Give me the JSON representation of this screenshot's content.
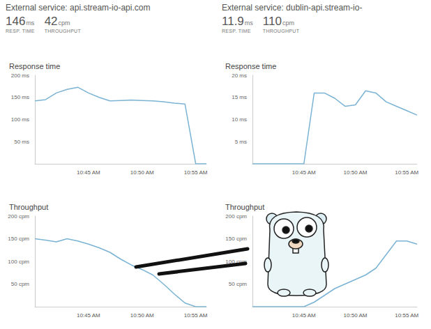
{
  "panels": [
    {
      "title": "External service: api.stream-io-api.com",
      "stats": [
        {
          "value": 146,
          "unit": "ms",
          "label": "RESP. TIME"
        },
        {
          "value": 42,
          "unit": "cpm",
          "label": "THROUGHPUT"
        }
      ]
    },
    {
      "title": "External service: dublin-api.stream-io-",
      "stats": [
        {
          "value": 11.9,
          "unit": "ms",
          "label": "RESP. TIME"
        },
        {
          "value": 110,
          "unit": "cpm",
          "label": "THROUGHPUT"
        }
      ]
    }
  ],
  "chart_data": [
    {
      "type": "line",
      "title": "Response time",
      "categories": [
        null,
        null,
        null,
        null,
        null,
        "10:45 AM",
        null,
        null,
        null,
        null,
        "10:50 AM",
        null,
        null,
        null,
        null,
        "10:55 AM",
        null
      ],
      "values": [
        142,
        145,
        160,
        168,
        173,
        160,
        150,
        142,
        143,
        144,
        143,
        142,
        140,
        137,
        135,
        0,
        0
      ],
      "color": "#7ab3d4",
      "ylim": [
        0,
        200
      ],
      "yticks": [
        {
          "value": 50,
          "label": "50 ms"
        },
        {
          "value": 100,
          "label": "100 ms"
        },
        {
          "value": 150,
          "label": "150 ms"
        },
        {
          "value": 200,
          "label": "200 ms"
        }
      ],
      "grid": false
    },
    {
      "type": "line",
      "title": "Throughput",
      "categories": [
        null,
        null,
        null,
        null,
        null,
        "10:45 AM",
        null,
        null,
        null,
        null,
        "10:50 AM",
        null,
        null,
        null,
        null,
        "10:55 AM",
        null
      ],
      "values": [
        150,
        147,
        143,
        150,
        145,
        138,
        130,
        120,
        105,
        92,
        82,
        70,
        50,
        28,
        8,
        0,
        0
      ],
      "color": "#7ab3d4",
      "ylim": [
        0,
        200
      ],
      "yticks": [
        {
          "value": 50,
          "label": "50 cpm"
        },
        {
          "value": 100,
          "label": "100 cpm"
        },
        {
          "value": 150,
          "label": "150 cpm"
        },
        {
          "value": 200,
          "label": "200 cpm"
        }
      ],
      "grid": false
    },
    {
      "type": "line",
      "title": "Response time",
      "categories": [
        null,
        null,
        null,
        null,
        null,
        "10:45 AM",
        null,
        null,
        null,
        null,
        "10:50 AM",
        null,
        null,
        null,
        null,
        "10:55 AM",
        null
      ],
      "values": [
        0,
        0,
        0,
        0,
        0,
        0,
        16,
        16,
        14.8,
        13,
        13.3,
        16.5,
        16,
        14,
        13,
        12,
        11
      ],
      "color": "#7ab3d4",
      "ylim": [
        0,
        20
      ],
      "yticks": [
        {
          "value": 5,
          "label": "5 ms"
        },
        {
          "value": 10,
          "label": "10 ms"
        },
        {
          "value": 15,
          "label": "15 ms"
        },
        {
          "value": 20,
          "label": "20 ms"
        }
      ],
      "grid": false
    },
    {
      "type": "line",
      "title": "Throughput",
      "categories": [
        null,
        null,
        null,
        null,
        null,
        "10:45 AM",
        null,
        null,
        null,
        null,
        "10:50 AM",
        null,
        null,
        null,
        null,
        "10:55 AM",
        null
      ],
      "values": [
        0,
        0,
        0,
        0,
        0,
        0,
        10,
        25,
        40,
        50,
        60,
        70,
        85,
        115,
        145,
        145,
        138
      ],
      "color": "#7ab3d4",
      "ylim": [
        0,
        200
      ],
      "yticks": [
        {
          "value": 50,
          "label": "50 cpm"
        },
        {
          "value": 100,
          "label": "100 cpm"
        },
        {
          "value": 150,
          "label": "150 cpm"
        },
        {
          "value": 200,
          "label": "200 cpm"
        }
      ],
      "grid": false
    }
  ]
}
